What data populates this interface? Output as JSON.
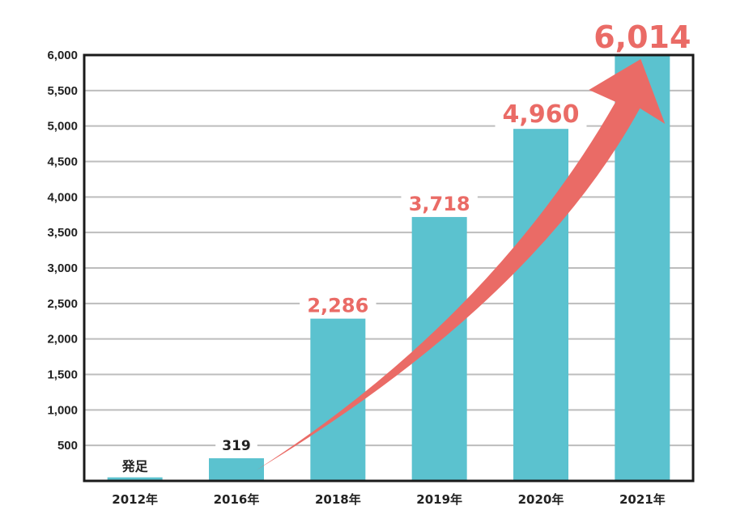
{
  "chart_data": {
    "type": "bar",
    "categories": [
      "2012年",
      "2016年",
      "2018年",
      "2019年",
      "2020年",
      "2021年"
    ],
    "values": [
      50,
      319,
      2286,
      3718,
      4960,
      6014
    ],
    "data_labels": [
      "発足",
      "319",
      "2,286",
      "3,718",
      "4,960",
      "6,014"
    ],
    "ylim": [
      0,
      6000
    ],
    "yticks": [
      "500",
      "1,000",
      "1,500",
      "2,000",
      "2,500",
      "3,000",
      "3,500",
      "4,000",
      "4,500",
      "5,000",
      "5,500",
      "6,000"
    ],
    "title": "",
    "xlabel": "",
    "ylabel": "",
    "grid": true,
    "colors": {
      "bar": "#5bc2cf",
      "highlight": "#ea6b66",
      "grid": "#bdbdbd",
      "frame": "#1a1a1a",
      "text": "#222222"
    }
  }
}
